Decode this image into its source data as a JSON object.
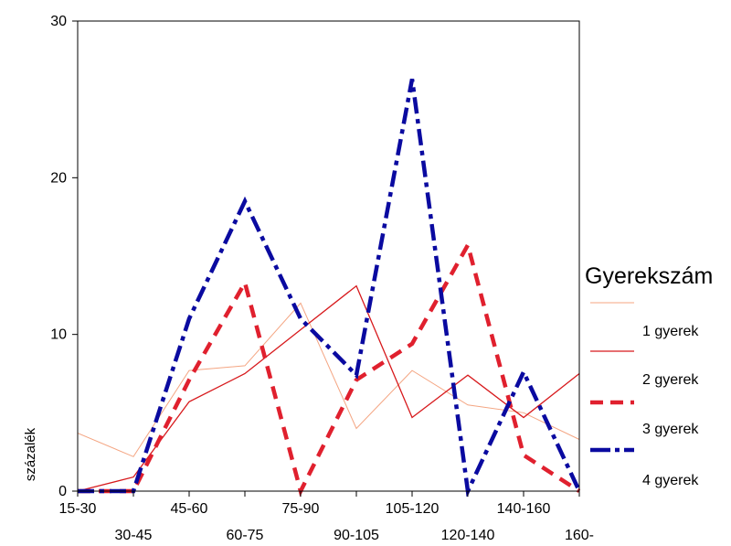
{
  "chart_data": {
    "type": "line",
    "title": "",
    "xlabel": "",
    "ylabel": "százalék",
    "categories": [
      "15-30",
      "30-45",
      "45-60",
      "60-75",
      "75-90",
      "90-105",
      "105-120",
      "120-140",
      "140-160",
      "160-"
    ],
    "ylim": [
      0,
      30
    ],
    "yticks": [
      0,
      10,
      20,
      30
    ],
    "grid": false,
    "legend": {
      "title": "Gyerekszám",
      "position": "right"
    },
    "series": [
      {
        "name": "",
        "color": "#F4A582",
        "style": "thin-solid",
        "values": [
          3.7,
          2.2,
          7.7,
          8.0,
          12.0,
          4.0,
          7.7,
          5.5,
          5.0,
          3.3
        ]
      },
      {
        "name": "1 gyerek",
        "color": "#D7191C",
        "style": "solid",
        "values": [
          0.0,
          0.9,
          5.7,
          7.5,
          10.3,
          13.1,
          4.7,
          7.4,
          4.7,
          7.5
        ]
      },
      {
        "name": "2 gyerek",
        "color": "#E0202E",
        "style": "dashed",
        "values": [
          0.0,
          0.0,
          7.1,
          13.3,
          0.0,
          7.1,
          9.4,
          15.7,
          2.3,
          0.0
        ]
      },
      {
        "name": "3 gyerek",
        "color": "#0A0AA0",
        "style": "dash-dot",
        "values": [
          0.0,
          0.0,
          11.0,
          18.5,
          11.0,
          7.4,
          26.3,
          0.0,
          7.6,
          0.0
        ]
      }
    ],
    "extra_legend_labels": [
      "4 gyerek"
    ]
  }
}
